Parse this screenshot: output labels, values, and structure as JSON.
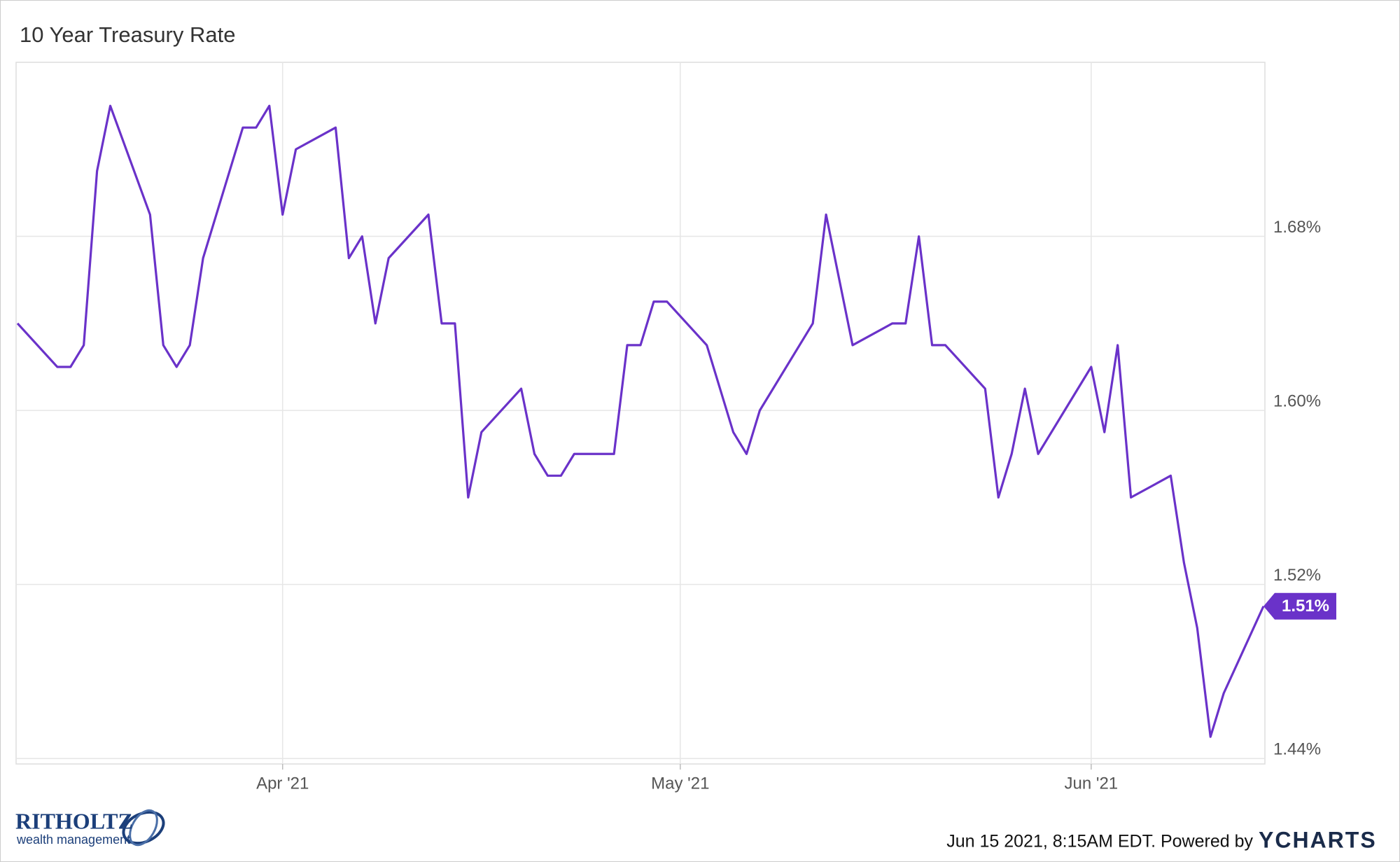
{
  "chart_data": {
    "type": "line",
    "title": "10 Year Treasury Rate",
    "x": [
      "2021-03-12",
      "2021-03-15",
      "2021-03-16",
      "2021-03-17",
      "2021-03-18",
      "2021-03-19",
      "2021-03-22",
      "2021-03-23",
      "2021-03-24",
      "2021-03-25",
      "2021-03-26",
      "2021-03-29",
      "2021-03-30",
      "2021-03-31",
      "2021-04-01",
      "2021-04-02",
      "2021-04-05",
      "2021-04-06",
      "2021-04-07",
      "2021-04-08",
      "2021-04-09",
      "2021-04-12",
      "2021-04-13",
      "2021-04-14",
      "2021-04-15",
      "2021-04-16",
      "2021-04-19",
      "2021-04-20",
      "2021-04-21",
      "2021-04-22",
      "2021-04-23",
      "2021-04-26",
      "2021-04-27",
      "2021-04-28",
      "2021-04-29",
      "2021-04-30",
      "2021-05-03",
      "2021-05-04",
      "2021-05-05",
      "2021-05-06",
      "2021-05-07",
      "2021-05-10",
      "2021-05-11",
      "2021-05-12",
      "2021-05-13",
      "2021-05-14",
      "2021-05-17",
      "2021-05-18",
      "2021-05-19",
      "2021-05-20",
      "2021-05-21",
      "2021-05-24",
      "2021-05-25",
      "2021-05-26",
      "2021-05-27",
      "2021-05-28",
      "2021-06-01",
      "2021-06-02",
      "2021-06-03",
      "2021-06-04",
      "2021-06-07",
      "2021-06-08",
      "2021-06-09",
      "2021-06-10",
      "2021-06-11",
      "2021-06-14"
    ],
    "series": [
      {
        "name": "10 Year Treasury Rate",
        "color": "#6a32c9",
        "values": [
          1.64,
          1.62,
          1.62,
          1.63,
          1.71,
          1.74,
          1.69,
          1.63,
          1.62,
          1.63,
          1.67,
          1.73,
          1.73,
          1.74,
          1.69,
          1.72,
          1.73,
          1.67,
          1.68,
          1.64,
          1.67,
          1.69,
          1.64,
          1.64,
          1.56,
          1.59,
          1.61,
          1.58,
          1.57,
          1.57,
          1.58,
          1.58,
          1.63,
          1.63,
          1.65,
          1.65,
          1.63,
          1.61,
          1.59,
          1.58,
          1.6,
          1.63,
          1.64,
          1.69,
          1.66,
          1.63,
          1.64,
          1.64,
          1.68,
          1.63,
          1.63,
          1.61,
          1.56,
          1.58,
          1.61,
          1.58,
          1.62,
          1.59,
          1.63,
          1.56,
          1.57,
          1.53,
          1.5,
          1.45,
          1.47,
          1.51
        ],
        "value_labels": [
          null,
          null,
          null,
          null,
          null,
          null,
          null,
          null,
          null,
          null,
          null,
          null,
          null,
          null,
          null,
          null,
          null,
          null,
          null,
          null,
          null,
          null,
          null,
          null,
          null,
          null,
          null,
          null,
          null,
          null,
          null,
          null,
          null,
          null,
          null,
          null,
          null,
          null,
          null,
          null,
          null,
          null,
          null,
          null,
          null,
          null,
          null,
          null,
          null,
          null,
          null,
          null,
          null,
          null,
          null,
          null,
          null,
          null,
          null,
          null,
          null,
          null,
          null,
          null,
          null,
          "1.51%"
        ]
      }
    ],
    "xlim": [
      "2021-03-12",
      "2021-06-14"
    ],
    "xticks": [
      {
        "value": "2021-04-01",
        "label": "Apr '21"
      },
      {
        "value": "2021-05-01",
        "label": "May '21"
      },
      {
        "value": "2021-06-01",
        "label": "Jun '21"
      }
    ],
    "ylim": [
      1.4375,
      1.76
    ],
    "yticks": [
      {
        "value": 1.44,
        "label": "1.44%"
      },
      {
        "value": 1.52,
        "label": "1.52%"
      },
      {
        "value": 1.6,
        "label": "1.60%"
      },
      {
        "value": 1.68,
        "label": "1.68%"
      }
    ],
    "grid": true
  },
  "branding": {
    "firm": "RITHOLTZ",
    "firm_sub": "wealth management",
    "timestamp": "Jun 15 2021, 8:15AM EDT. Powered by",
    "provider": "YCHARTS"
  }
}
